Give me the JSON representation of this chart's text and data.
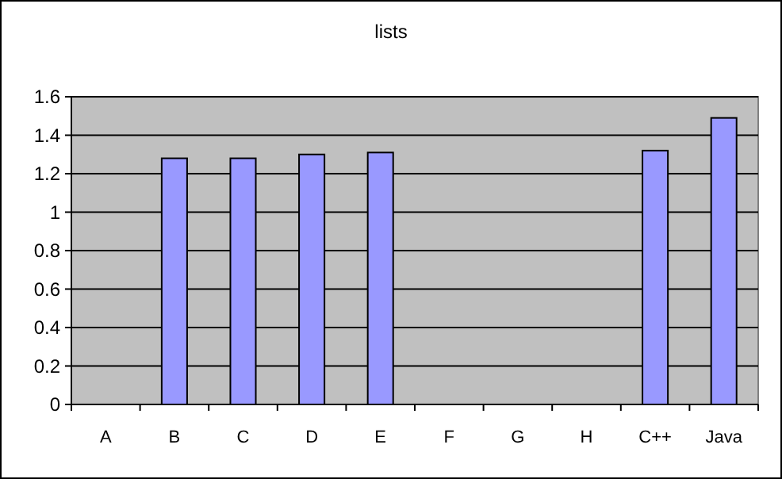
{
  "chart_data": {
    "type": "bar",
    "title": "lists",
    "categories": [
      "A",
      "B",
      "C",
      "D",
      "E",
      "F",
      "G",
      "H",
      "C++",
      "Java"
    ],
    "values": [
      null,
      1.28,
      1.28,
      1.3,
      1.31,
      null,
      null,
      null,
      1.32,
      1.49
    ],
    "color": "#9999ff",
    "ylim": [
      0,
      1.6
    ],
    "yticks": [
      0,
      0.2,
      0.4,
      0.6,
      0.8,
      1,
      1.2,
      1.4,
      1.6
    ],
    "grid": "y"
  }
}
